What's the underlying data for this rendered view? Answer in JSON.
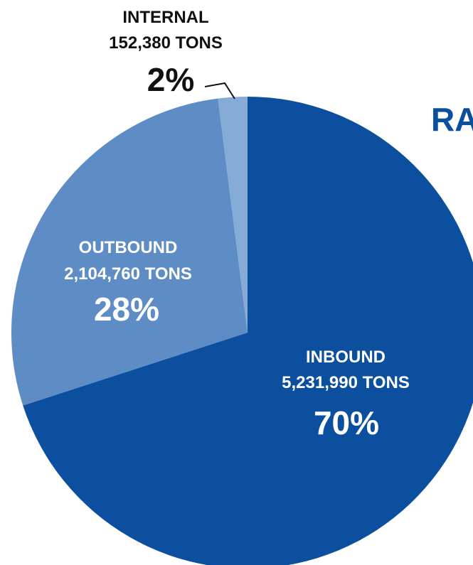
{
  "colors": {
    "inbound": "#0B4F9E",
    "outbound": "#5D8DC4",
    "internal": "#86ABD6",
    "outside_label": "#111111",
    "inside_label": "#ffffff",
    "title": "#0B4F9E"
  },
  "title_fragment": "RA",
  "chart_data": {
    "type": "pie",
    "unit": "TONS",
    "slices": [
      {
        "key": "inbound",
        "label": "INBOUND",
        "tons_text": "5,231,990 TONS",
        "tons": 5231990,
        "percent_text": "70%",
        "percent": 70
      },
      {
        "key": "outbound",
        "label": "OUTBOUND",
        "tons_text": "2,104,760 TONS",
        "tons": 2104760,
        "percent_text": "28%",
        "percent": 28
      },
      {
        "key": "internal",
        "label": "INTERNAL",
        "tons_text": "152,380 TONS",
        "tons": 152380,
        "percent_text": "2%",
        "percent": 2
      }
    ]
  }
}
